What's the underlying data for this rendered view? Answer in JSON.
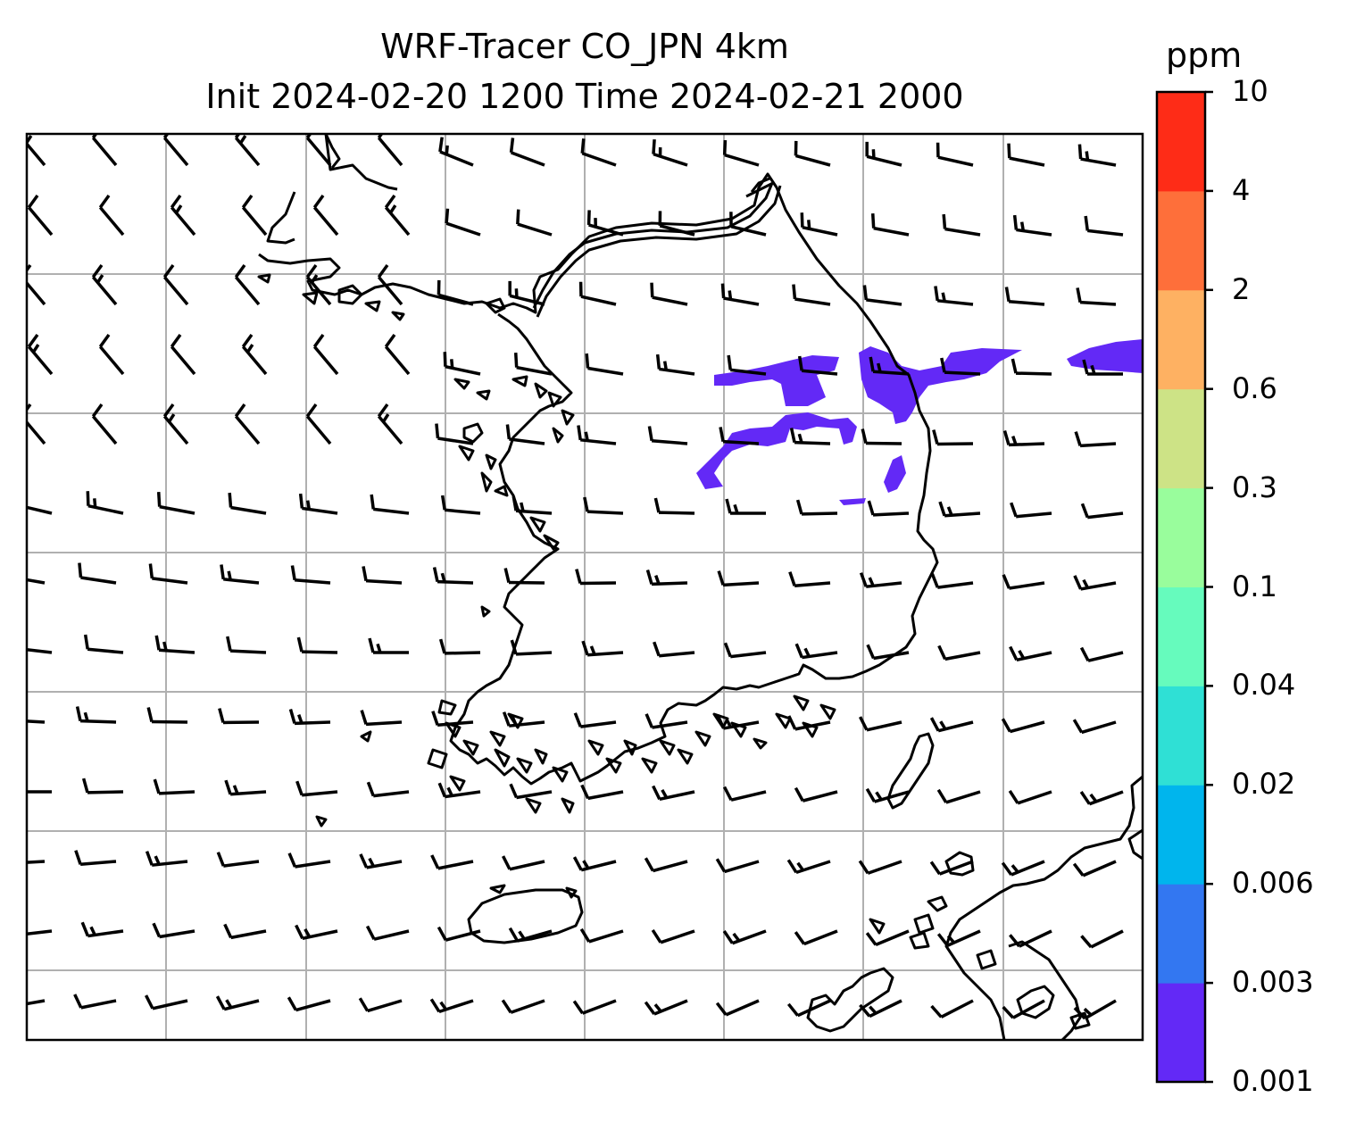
{
  "title": {
    "line1": "WRF-Tracer CO_JPN 4km",
    "line2": "Init 2024-02-20 1200 Time 2024-02-21 2000"
  },
  "colorbar": {
    "unit": "ppm",
    "levels": [
      "0.001",
      "0.003",
      "0.006",
      "0.02",
      "0.04",
      "0.1",
      "0.3",
      "0.6",
      "2",
      "4",
      "10"
    ],
    "colors": [
      "#6329f6",
      "#3377f1",
      "#00b5ed",
      "#2fe0d5",
      "#66fbbd",
      "#99fd9c",
      "#cde386",
      "#feb162",
      "#fe6f3a",
      "#fe2c17"
    ]
  },
  "map": {
    "plume_color": "#6329f6",
    "grid_color": "#b0b0b0",
    "wind_barb_color": "#000000"
  }
}
